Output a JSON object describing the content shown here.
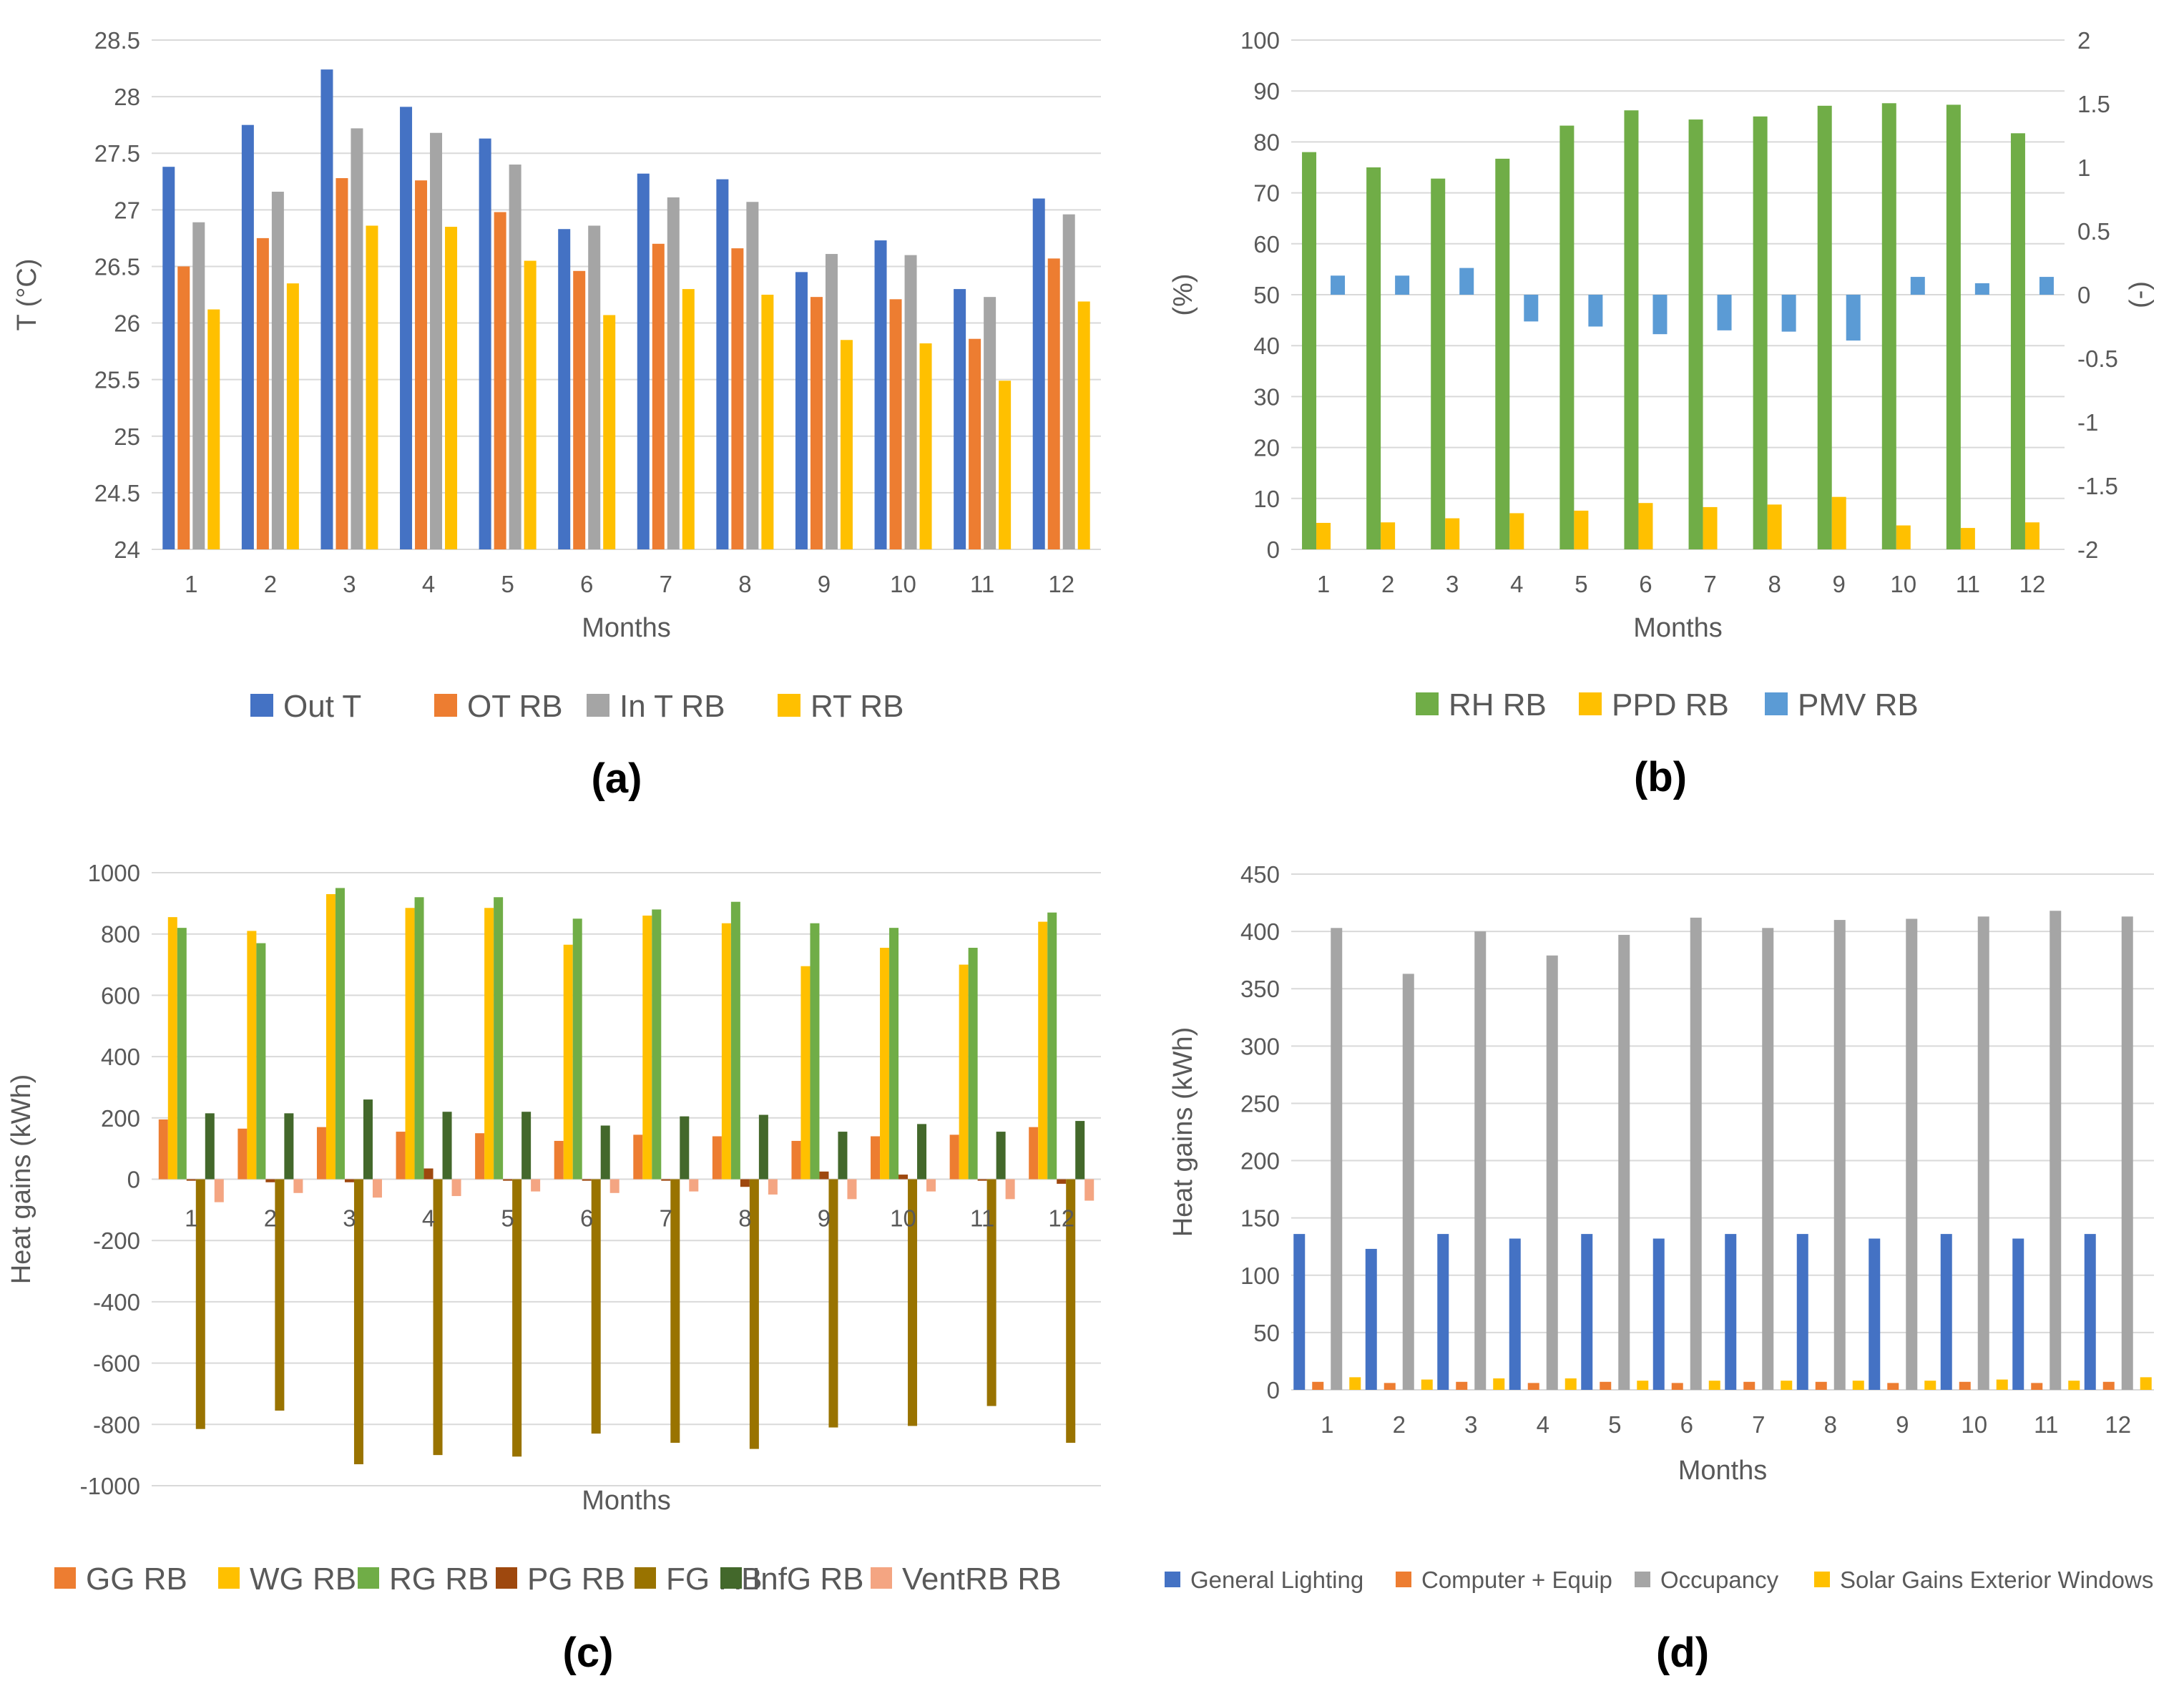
{
  "colors": {
    "blue": "#4472C4",
    "orange": "#ED7D31",
    "gray": "#A5A5A5",
    "yellow": "#FFC000",
    "green": "#70AD47",
    "lightblue": "#5B9BD5",
    "darkred": "#9E480E",
    "olive": "#997300",
    "darkgreen": "#43682B",
    "salmon": "#F4A582",
    "grid": "#D9D9D9",
    "text": "#595959"
  },
  "chart_data": [
    {
      "panel": "(a)",
      "type": "bar",
      "xlabel": "Months",
      "ylabel": "T (°C)",
      "ylim": [
        24,
        28.5
      ],
      "yticks": [
        "24",
        "24.5",
        "25",
        "25.5",
        "26",
        "26.5",
        "27",
        "27.5",
        "28",
        "28.5"
      ],
      "categories": [
        "1",
        "2",
        "3",
        "4",
        "5",
        "6",
        "7",
        "8",
        "9",
        "10",
        "11",
        "12"
      ],
      "legend_position": "bottom",
      "grid": true,
      "series": [
        {
          "name": "Out T",
          "color": "#4472C4",
          "values": [
            27.38,
            27.75,
            28.24,
            27.91,
            27.63,
            26.83,
            27.32,
            27.27,
            26.45,
            26.73,
            26.3,
            27.1
          ]
        },
        {
          "name": "OT RB",
          "color": "#ED7D31",
          "values": [
            26.5,
            26.75,
            27.28,
            27.26,
            26.98,
            26.46,
            26.7,
            26.66,
            26.23,
            26.21,
            25.86,
            26.57
          ]
        },
        {
          "name": "In T RB",
          "color": "#A5A5A5",
          "values": [
            26.89,
            27.16,
            27.72,
            27.68,
            27.4,
            26.86,
            27.11,
            27.07,
            26.61,
            26.6,
            26.23,
            26.96
          ]
        },
        {
          "name": "RT RB",
          "color": "#FFC000",
          "values": [
            26.12,
            26.35,
            26.86,
            26.85,
            26.55,
            26.07,
            26.3,
            26.25,
            25.85,
            25.82,
            25.49,
            26.19
          ]
        }
      ]
    },
    {
      "panel": "(b)",
      "type": "bar",
      "xlabel": "Months",
      "ylabel": "(%)",
      "ylabel_right": "(-)",
      "ylim": [
        0,
        100
      ],
      "ylim_right": [
        -2,
        2
      ],
      "yticks": [
        "0",
        "10",
        "20",
        "30",
        "40",
        "50",
        "60",
        "70",
        "80",
        "90",
        "100"
      ],
      "yticks_right": [
        "-2",
        "-1.5",
        "-1",
        "-0.5",
        "0",
        "0.5",
        "1",
        "1.5",
        "2"
      ],
      "categories": [
        "1",
        "2",
        "3",
        "4",
        "5",
        "6",
        "7",
        "8",
        "9",
        "10",
        "11",
        "12"
      ],
      "legend_position": "bottom",
      "grid": true,
      "series": [
        {
          "name": "RH RB",
          "color": "#70AD47",
          "axis": "left",
          "values": [
            78,
            75,
            72.8,
            76.7,
            83.2,
            86.2,
            84.4,
            85.0,
            87.1,
            87.6,
            87.3,
            81.7
          ]
        },
        {
          "name": "PPD RB",
          "color": "#FFC000",
          "axis": "left",
          "values": [
            5.2,
            5.3,
            6.1,
            7.1,
            7.6,
            9.1,
            8.3,
            8.8,
            10.3,
            4.7,
            4.2,
            5.3
          ]
        },
        {
          "name": "PMV RB",
          "color": "#5B9BD5",
          "axis": "right",
          "values": [
            0.15,
            0.15,
            0.21,
            -0.21,
            -0.25,
            -0.31,
            -0.28,
            -0.29,
            -0.36,
            0.14,
            0.09,
            0.14
          ]
        }
      ]
    },
    {
      "panel": "(c)",
      "type": "bar",
      "xlabel": "Months",
      "ylabel": "Heat gains (kWh)",
      "ylim": [
        -1000,
        1000
      ],
      "yticks": [
        "-1000",
        "-800",
        "-600",
        "-400",
        "-200",
        "0",
        "200",
        "400",
        "600",
        "800",
        "1000"
      ],
      "categories": [
        "1",
        "2",
        "3",
        "4",
        "5",
        "6",
        "7",
        "8",
        "9",
        "10",
        "11",
        "12"
      ],
      "legend_position": "bottom",
      "grid": true,
      "series": [
        {
          "name": "GG RB",
          "color": "#ED7D31",
          "values": [
            195,
            165,
            170,
            155,
            150,
            125,
            145,
            140,
            125,
            140,
            145,
            170
          ]
        },
        {
          "name": "WG RB",
          "color": "#FFC000",
          "values": [
            855,
            810,
            930,
            885,
            885,
            765,
            860,
            835,
            695,
            755,
            700,
            840
          ]
        },
        {
          "name": "RG RB",
          "color": "#70AD47",
          "values": [
            820,
            770,
            950,
            920,
            920,
            850,
            880,
            905,
            835,
            820,
            755,
            870
          ]
        },
        {
          "name": "PG RB",
          "color": "#9E480E",
          "values": [
            -5,
            -10,
            -10,
            35,
            -5,
            -5,
            -5,
            -25,
            25,
            15,
            -5,
            -15
          ]
        },
        {
          "name": "FG RB",
          "color": "#997300",
          "values": [
            -815,
            -755,
            -930,
            -900,
            -905,
            -830,
            -860,
            -880,
            -810,
            -805,
            -740,
            -860
          ]
        },
        {
          "name": "InfG RB",
          "color": "#43682B",
          "values": [
            215,
            215,
            260,
            220,
            220,
            175,
            205,
            210,
            155,
            180,
            155,
            190
          ]
        },
        {
          "name": "VentRB RB",
          "color": "#F4A582",
          "values": [
            -75,
            -45,
            -60,
            -55,
            -40,
            -45,
            -40,
            -50,
            -65,
            -40,
            -65,
            -70
          ]
        }
      ]
    },
    {
      "panel": "(d)",
      "type": "bar",
      "xlabel": "Months",
      "ylabel": "Heat gains (kWh)",
      "ylim": [
        0,
        450
      ],
      "yticks": [
        "0",
        "50",
        "100",
        "150",
        "200",
        "250",
        "300",
        "350",
        "400",
        "450"
      ],
      "categories": [
        "1",
        "2",
        "3",
        "4",
        "5",
        "6",
        "7",
        "8",
        "9",
        "10",
        "11",
        "12"
      ],
      "legend_position": "bottom",
      "grid": true,
      "series": [
        {
          "name": "General Lighting",
          "color": "#4472C4",
          "values": [
            136,
            123,
            136,
            132,
            136,
            132,
            136,
            136,
            132,
            136,
            132,
            136
          ]
        },
        {
          "name": "Computer + Equip",
          "color": "#ED7D31",
          "values": [
            7,
            6,
            7,
            6,
            7,
            6,
            7,
            7,
            6,
            7,
            6,
            7
          ]
        },
        {
          "name": "Occupancy",
          "color": "#A5A5A5",
          "values": [
            403,
            363,
            400,
            379,
            397,
            412,
            403,
            410,
            411,
            413,
            418,
            413
          ]
        },
        {
          "name": "Solar Gains Exterior Windows",
          "color": "#FFC000",
          "values": [
            11,
            9,
            10,
            10,
            8,
            8,
            8,
            8,
            8,
            9,
            8,
            11
          ]
        }
      ]
    }
  ]
}
